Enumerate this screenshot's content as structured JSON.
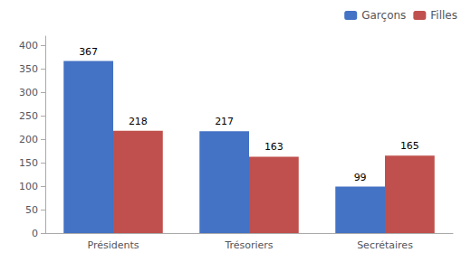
{
  "chart_data": {
    "type": "bar",
    "categories": [
      "Présidents",
      "Trésoriers",
      "Secrétaires"
    ],
    "series": [
      {
        "name": "Garçons",
        "color": "#4472C4",
        "values": [
          367,
          217,
          99
        ]
      },
      {
        "name": "Filles",
        "color": "#C0504D",
        "values": [
          218,
          163,
          165
        ]
      }
    ],
    "ylim": [
      0,
      420
    ],
    "yticks": [
      0,
      50,
      100,
      150,
      200,
      250,
      300,
      350,
      400
    ],
    "grid": false,
    "legend": "upper right",
    "data_labels": true
  }
}
